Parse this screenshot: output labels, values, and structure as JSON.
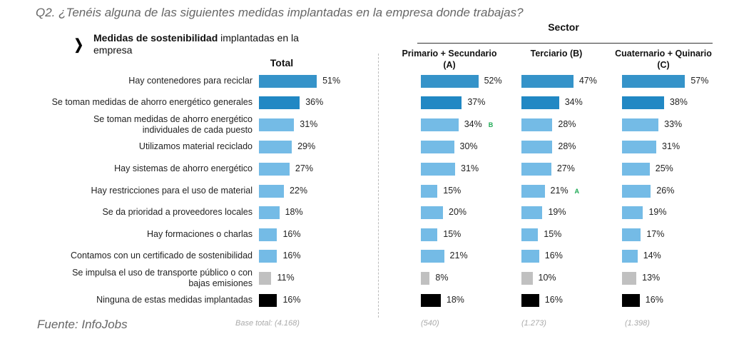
{
  "question": "Q2. ¿Tenéis alguna de las siguientes medidas implantadas en la empresa donde trabajas?",
  "subtitle_bold": "Medidas de sostenibilidad",
  "subtitle_rest": " implantadas en la empresa",
  "source": "Fuente: InfoJobs",
  "colors": {
    "first": "#3593c9",
    "second": "#2188c4",
    "default": "#74bbe6",
    "transport": "#c0c0c0",
    "none": "#000000",
    "significance": "#1faa55"
  },
  "chart_data": {
    "type": "bar",
    "orientation": "horizontal",
    "unit": "%",
    "group_header": "Sector",
    "categories": [
      "Hay contenedores para reciclar",
      "Se toman medidas de ahorro energético generales",
      "Se toman medidas de ahorro energético individuales de cada puesto",
      "Utilizamos material reciclado",
      "Hay sistemas de ahorro energético",
      "Hay restricciones para el uso de material",
      "Se da prioridad a proveedores locales",
      "Hay formaciones o charlas",
      "Contamos con un certificado de sostenibilidad",
      "Se impulsa el uso de transporte público o con bajas emisiones",
      "Ninguna de estas medidas implantadas"
    ],
    "series": [
      {
        "name": "Total",
        "values": [
          51,
          36,
          31,
          29,
          27,
          22,
          18,
          16,
          16,
          11,
          16
        ],
        "base": "Base total: (4.168)",
        "significance": []
      },
      {
        "name": "Primario + Secundario (A)",
        "values": [
          52,
          37,
          34,
          30,
          31,
          15,
          20,
          15,
          21,
          8,
          18
        ],
        "base": "(540)",
        "significance": [
          {
            "index": 2,
            "letter": "B"
          }
        ]
      },
      {
        "name": "Terciario (B)",
        "values": [
          47,
          34,
          28,
          28,
          27,
          21,
          19,
          15,
          16,
          10,
          16
        ],
        "base": "(1.273)",
        "significance": [
          {
            "index": 5,
            "letter": "A"
          }
        ]
      },
      {
        "name": "Cuaternario + Quinario (C)",
        "values": [
          57,
          38,
          33,
          31,
          25,
          26,
          19,
          17,
          14,
          13,
          16
        ],
        "base": "(1.398)",
        "significance": []
      }
    ]
  }
}
